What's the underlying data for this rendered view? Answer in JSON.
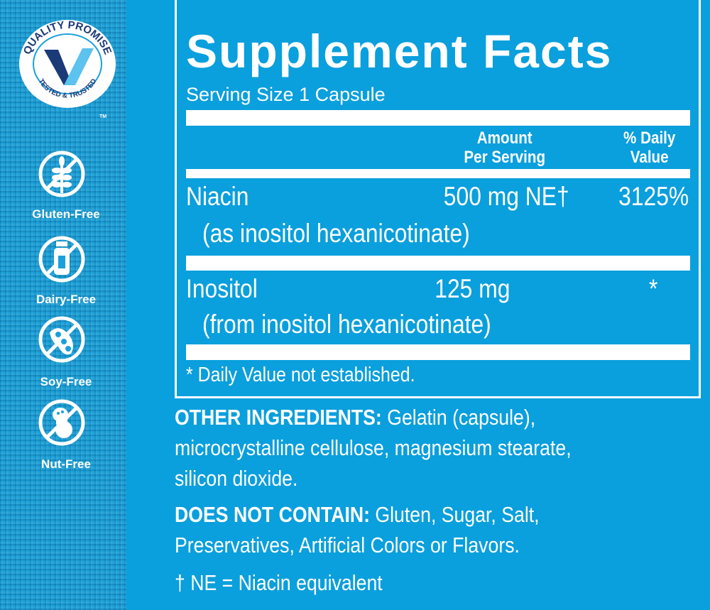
{
  "badges": {
    "quality_seal": {
      "top_text": "QUALITY PROMISE",
      "bottom_text": "TESTED & TRUSTED",
      "tm": "TM"
    },
    "items": [
      {
        "label": "Gluten-Free",
        "icon": "wheat-crossed-icon"
      },
      {
        "label": "Dairy-Free",
        "icon": "milk-bottle-crossed-icon"
      },
      {
        "label": "Soy-Free",
        "icon": "soybean-crossed-icon"
      },
      {
        "label": "Nut-Free",
        "icon": "peanut-crossed-icon"
      }
    ]
  },
  "facts": {
    "title": "Supplement Facts",
    "serving_size": "Serving Size 1 Capsule",
    "header": {
      "amount_line1": "Amount",
      "amount_line2": "Per Serving",
      "dv_line1": "% Daily",
      "dv_line2": "Value"
    },
    "rows": [
      {
        "name": "Niacin",
        "source": "(as inositol hexanicotinate)",
        "amount": "500 mg NE†",
        "dv": "3125%"
      },
      {
        "name": "Inositol",
        "source": "(from inositol hexanicotinate)",
        "amount": "125 mg",
        "dv": "*"
      }
    ],
    "footnote": "* Daily Value not established."
  },
  "other_ingredients": {
    "label": "OTHER INGREDIENTS:",
    "line1": " Gelatin (capsule),",
    "line2": "microcrystalline cellulose, magnesium stearate,",
    "line3": "silicon dioxide."
  },
  "does_not_contain": {
    "label": "DOES NOT CONTAIN:",
    "line1": " Gluten, Sugar, Salt,",
    "line2": "Preservatives, Artificial Colors or Flavors."
  },
  "ne_note": "† NE = Niacin equivalent",
  "colors": {
    "background": "#0a9fdd",
    "text": "#ffffff",
    "seal_dark": "#1b3a78",
    "seal_light": "#5cc2ee"
  }
}
